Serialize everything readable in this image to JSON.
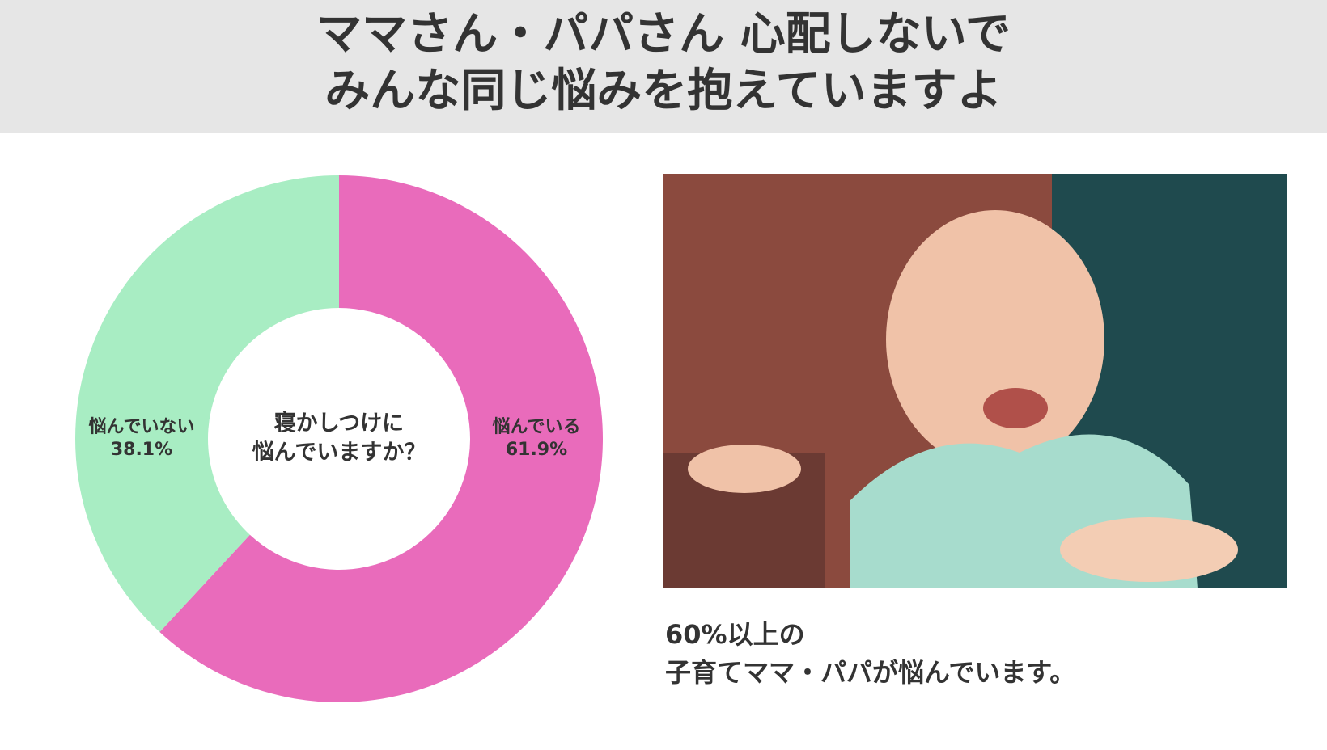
{
  "chart_data": {
    "type": "donut",
    "title": [
      "ママさん・パパさん 心配しないで",
      "みんな同じ悩みを抱えていますよ"
    ],
    "center_text": [
      "寝かしつけに",
      "悩んでいますか？"
    ],
    "categories": [
      "悩んでいる",
      "悩んでいない"
    ],
    "values": [
      61.9,
      38.1
    ],
    "value_labels": [
      "61.9%",
      "38.1%"
    ],
    "colors": [
      "#e96bbb",
      "#a8edc3"
    ],
    "caption": [
      "60%以上の",
      "子育てママ・パパが悩んでいます。"
    ]
  }
}
